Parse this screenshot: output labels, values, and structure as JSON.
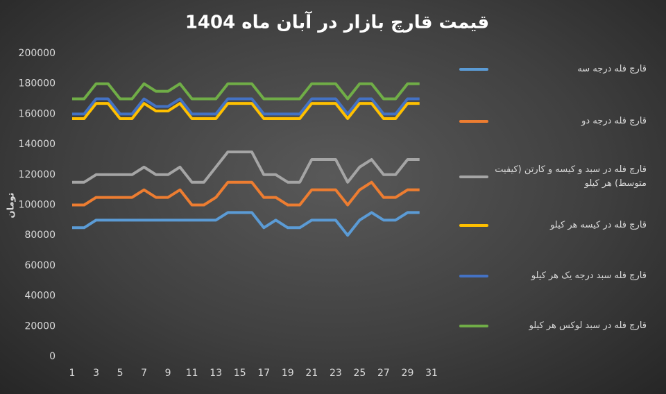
{
  "chart_data": {
    "type": "line",
    "title": "قیمت قارچ بازار در آبان ماه 1404",
    "y_label": "تومان",
    "x": [
      1,
      2,
      3,
      4,
      5,
      6,
      7,
      8,
      9,
      10,
      11,
      12,
      13,
      14,
      15,
      16,
      17,
      18,
      19,
      20,
      21,
      22,
      23,
      24,
      25,
      26,
      27,
      28,
      29,
      30
    ],
    "xlim": [
      1,
      31
    ],
    "xticks": [
      1,
      3,
      5,
      7,
      9,
      11,
      13,
      15,
      17,
      19,
      21,
      23,
      25,
      27,
      29,
      31
    ],
    "ylim": [
      0,
      200000
    ],
    "yticks": [
      0,
      20000,
      40000,
      60000,
      80000,
      100000,
      120000,
      140000,
      160000,
      180000,
      200000
    ],
    "grid": false,
    "legend": "right",
    "series": [
      {
        "name": "قارچ فله درجه سه",
        "color": "#5b9bd5",
        "values": [
          85000,
          85000,
          90000,
          90000,
          90000,
          90000,
          90000,
          90000,
          90000,
          90000,
          90000,
          90000,
          90000,
          95000,
          95000,
          95000,
          85000,
          90000,
          85000,
          85000,
          90000,
          90000,
          90000,
          80000,
          90000,
          95000,
          90000,
          90000,
          95000,
          95000
        ]
      },
      {
        "name": "قارچ فله درجه دو",
        "color": "#ed7d31",
        "values": [
          100000,
          100000,
          105000,
          105000,
          105000,
          105000,
          110000,
          105000,
          105000,
          110000,
          100000,
          100000,
          105000,
          115000,
          115000,
          115000,
          105000,
          105000,
          100000,
          100000,
          110000,
          110000,
          110000,
          100000,
          110000,
          115000,
          105000,
          105000,
          110000,
          110000
        ]
      },
      {
        "name": "قارچ فله در سبد و کیسه و کارتن (کیفیت متوسط) هر کیلو",
        "color": "#a5a5a5",
        "values": [
          115000,
          115000,
          120000,
          120000,
          120000,
          120000,
          125000,
          120000,
          120000,
          125000,
          115000,
          115000,
          125000,
          135000,
          135000,
          135000,
          120000,
          120000,
          115000,
          115000,
          130000,
          130000,
          130000,
          115000,
          125000,
          130000,
          120000,
          120000,
          130000,
          130000
        ]
      },
      {
        "name": "قارچ فله در کیسه هر کیلو",
        "color": "#ffc000",
        "values": [
          157000,
          157000,
          167000,
          167000,
          157000,
          157000,
          167000,
          162000,
          162000,
          167000,
          157000,
          157000,
          157000,
          167000,
          167000,
          167000,
          157000,
          157000,
          157000,
          157000,
          167000,
          167000,
          167000,
          157000,
          167000,
          167000,
          157000,
          157000,
          167000,
          167000
        ]
      },
      {
        "name": "قارچ فله سبد درجه یک هر کیلو",
        "color": "#4472c4",
        "values": [
          160000,
          160000,
          170000,
          170000,
          160000,
          160000,
          170000,
          165000,
          165000,
          170000,
          160000,
          160000,
          160000,
          170000,
          170000,
          170000,
          160000,
          160000,
          160000,
          160000,
          170000,
          170000,
          170000,
          160000,
          170000,
          170000,
          160000,
          160000,
          170000,
          170000
        ]
      },
      {
        "name": "قارچ فله در سبد لوکس هر کیلو",
        "color": "#70ad47",
        "values": [
          170000,
          170000,
          180000,
          180000,
          170000,
          170000,
          180000,
          175000,
          175000,
          180000,
          170000,
          170000,
          170000,
          180000,
          180000,
          180000,
          170000,
          170000,
          170000,
          170000,
          180000,
          180000,
          180000,
          170000,
          180000,
          180000,
          170000,
          170000,
          180000,
          180000
        ]
      }
    ]
  }
}
